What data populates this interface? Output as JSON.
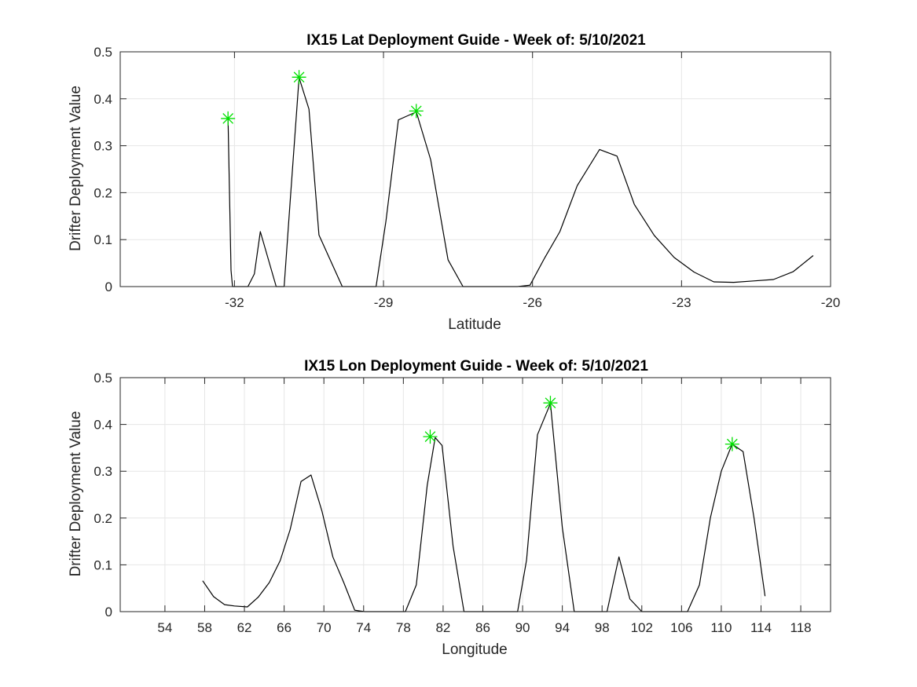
{
  "chart_data": [
    {
      "type": "line",
      "title": "IX15 Lat Deployment Guide - Week of: 5/10/2021",
      "xlabel": "Latitude",
      "ylabel": "Drifter Deployment Value",
      "xlim": [
        -34.3,
        -20
      ],
      "ylim": [
        0,
        0.5
      ],
      "xticks": [
        -32,
        -29,
        -26,
        -23,
        -20
      ],
      "xtick_labels": [
        "-32",
        "-29",
        "-26",
        "-23",
        "-20"
      ],
      "yticks": [
        0,
        0.1,
        0.2,
        0.3,
        0.4,
        0.5
      ],
      "ytick_labels": [
        "0",
        "0.1",
        "0.2",
        "0.3",
        "0.4",
        "0.5"
      ],
      "grid": true,
      "series": [
        {
          "line_color": "#000000",
          "x": [
            -32.13,
            -32.07,
            -32.04,
            -31.97,
            -31.73,
            -31.6,
            -31.48,
            -31.16,
            -31.0,
            -30.88,
            -30.7,
            -30.5,
            -30.3,
            -29.83,
            -29.15,
            -28.95,
            -28.7,
            -28.34,
            -28.05,
            -27.7,
            -27.4,
            -26.3,
            -26.05,
            -25.75,
            -25.45,
            -25.1,
            -24.65,
            -24.3,
            -23.95,
            -23.55,
            -23.15,
            -22.75,
            -22.35,
            -21.95,
            -21.55,
            -21.15,
            -20.75,
            -20.35
          ],
          "y": [
            0.358,
            0.035,
            0.0,
            0.0,
            0.0,
            0.027,
            0.117,
            0.0,
            0.0,
            0.18,
            0.445,
            0.378,
            0.11,
            0.0,
            0.0,
            0.14,
            0.355,
            0.372,
            0.27,
            0.057,
            0.0,
            0.0,
            0.003,
            0.062,
            0.117,
            0.215,
            0.292,
            0.278,
            0.175,
            0.109,
            0.062,
            0.031,
            0.01,
            0.009,
            0.012,
            0.015,
            0.032,
            0.066
          ]
        },
        {
          "marker": "*",
          "marker_color": "#00e000",
          "x": [
            -32.13,
            -30.7,
            -28.34
          ],
          "y": [
            0.358,
            0.446,
            0.374
          ]
        }
      ]
    },
    {
      "type": "line",
      "title": "IX15 Lon Deployment Guide - Week of: 5/10/2021",
      "xlabel": "Longitude",
      "ylabel": "Drifter Deployment Value",
      "xlim": [
        49.5,
        121
      ],
      "ylim": [
        0,
        0.5
      ],
      "xticks": [
        54,
        58,
        62,
        66,
        70,
        74,
        78,
        82,
        86,
        90,
        94,
        98,
        102,
        106,
        110,
        114,
        118
      ],
      "xtick_labels": [
        "54",
        "58",
        "62",
        "66",
        "70",
        "74",
        "78",
        "82",
        "86",
        "90",
        "94",
        "98",
        "102",
        "106",
        "110",
        "114",
        "118"
      ],
      "yticks": [
        0,
        0.1,
        0.2,
        0.3,
        0.4,
        0.5
      ],
      "ytick_labels": [
        "0",
        "0.1",
        "0.2",
        "0.3",
        "0.4",
        "0.5"
      ],
      "grid": true,
      "series": [
        {
          "line_color": "#000000",
          "x": [
            57.8,
            58.9,
            60.0,
            61.0,
            62.3,
            63.4,
            64.5,
            65.6,
            66.6,
            67.7,
            68.7,
            69.8,
            70.9,
            72.0,
            73.1,
            74.1,
            78.2,
            79.3,
            80.4,
            81.2,
            81.9,
            83.0,
            84.1,
            89.5,
            90.4,
            91.5,
            92.8,
            94.0,
            95.2,
            98.5,
            99.7,
            100.8,
            102.0,
            106.6,
            107.8,
            108.9,
            110.0,
            111.1,
            112.2,
            113.3,
            114.4
          ],
          "y": [
            0.066,
            0.032,
            0.015,
            0.012,
            0.01,
            0.031,
            0.062,
            0.109,
            0.175,
            0.278,
            0.292,
            0.215,
            0.117,
            0.062,
            0.003,
            0.0,
            0.0,
            0.057,
            0.27,
            0.372,
            0.355,
            0.14,
            0.0,
            0.0,
            0.11,
            0.378,
            0.445,
            0.18,
            0.0,
            0.0,
            0.117,
            0.027,
            0.0,
            0.0,
            0.057,
            0.2,
            0.3,
            0.358,
            0.342,
            0.2,
            0.033
          ]
        },
        {
          "marker": "*",
          "marker_color": "#00e000",
          "x": [
            80.7,
            92.8,
            111.1
          ],
          "y": [
            0.374,
            0.446,
            0.358
          ]
        }
      ]
    }
  ]
}
